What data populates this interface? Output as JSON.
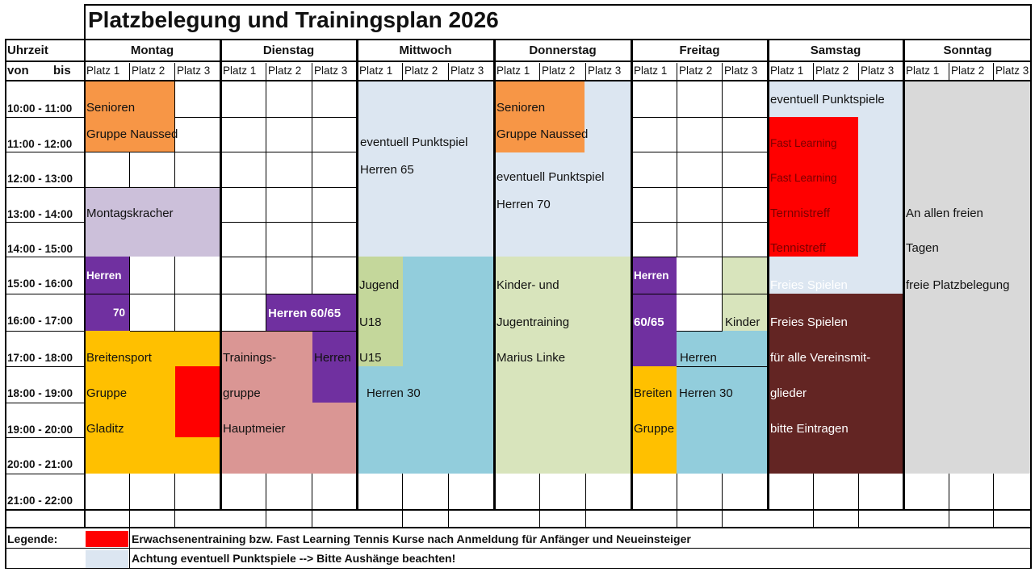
{
  "title": "Platzbelegung und Trainingsplan 2026",
  "header": {
    "uhrzeit": "Uhrzeit",
    "von": "von",
    "bis": "bis",
    "days": [
      "Montag",
      "Dienstag",
      "Mittwoch",
      "Donnerstag",
      "Freitag",
      "Samstag",
      "Sonntag"
    ],
    "court_labels": [
      "Platz 1",
      "Platz 2",
      "Platz 3"
    ]
  },
  "times": [
    "10:00 - 11:00",
    "11:00 - 12:00",
    "12:00 - 13:00",
    "13:00 - 14:00",
    "14:00 - 15:00",
    "15:00 - 16:00",
    "16:00 - 17:00",
    "17:00 - 18:00",
    "18:00 - 19:00",
    "19:00 - 20:00",
    "20:00 - 21:00",
    "21:00 - 22:00"
  ],
  "colors": {
    "senioren": "#f79646",
    "lavender": "#ccc0da",
    "purple": "#7030a0",
    "yellow": "#ffc000",
    "red": "#ff0000",
    "rose": "#da9694",
    "light_blue": "#dce6f1",
    "teal": "#92cddc",
    "green": "#c4d79b",
    "light_green": "#d8e4bc",
    "maroon": "#632523",
    "gray": "#d9d9d9"
  },
  "entries": {
    "mo_senioren": "Senioren",
    "mo_gruppe": "Gruppe Naussed",
    "mo_montagskracher": "Montagskracher",
    "mo_herren": "Herren",
    "mo_70": "70",
    "mo_breitensport": "Breitensport",
    "mo_gruppe2": "Gruppe",
    "mo_gladitz": "Gladitz",
    "di_herren6065": "Herren 60/65",
    "di_herren": "Herren",
    "di_trainings": "Trainings-",
    "di_gruppe": "gruppe",
    "di_hauptmeier": "Hauptmeier",
    "mi_punktspiel": "eventuell Punktspiel",
    "mi_herren65": "Herren 65",
    "mi_jugend": "Jugend",
    "mi_u18": "U18",
    "mi_u15": "U15",
    "mi_herren30": "Herren 30",
    "do_senioren": "Senioren",
    "do_gruppe": "Gruppe Naussed",
    "do_punktspiel": "eventuell Punktspiel",
    "do_herren70": "Herren 70",
    "do_kinder": "Kinder- und",
    "do_jugend": "Jugentraining",
    "do_marius": "Marius Linke",
    "fr_herren": "Herren",
    "fr_6065": "60/65",
    "fr_kinder": "Kinder",
    "fr_herren_b": "Herren",
    "fr_breiten": "Breiten",
    "fr_herren30": "Herren 30",
    "fr_gruppe": "Gruppe",
    "sa_punktspiele": "eventuell Punktspiele",
    "sa_fast1": "Fast Learning",
    "sa_fast2": "Fast Learning",
    "sa_tennis1": "Ternnistreff",
    "sa_tennis2": "Tennistreff",
    "sa_freies1": "Freies Spielen",
    "sa_freies2": "Freies Spielen",
    "sa_fuer": "für alle Vereinsmit-",
    "sa_glieder": "glieder",
    "sa_bitte": "bitte Eintragen",
    "so_an": "An allen freien",
    "so_tagen": "Tagen",
    "so_freie": "freie Platzbelegung"
  },
  "legend": {
    "label": "Legende:",
    "red_text": "Erwachsenentraining bzw. Fast Learning Tennis Kurse nach Anmeldung für Anfänger und Neueinsteiger",
    "blue_text": "Achtung eventuell Punktspiele --> Bitte Aushänge beachten!"
  }
}
